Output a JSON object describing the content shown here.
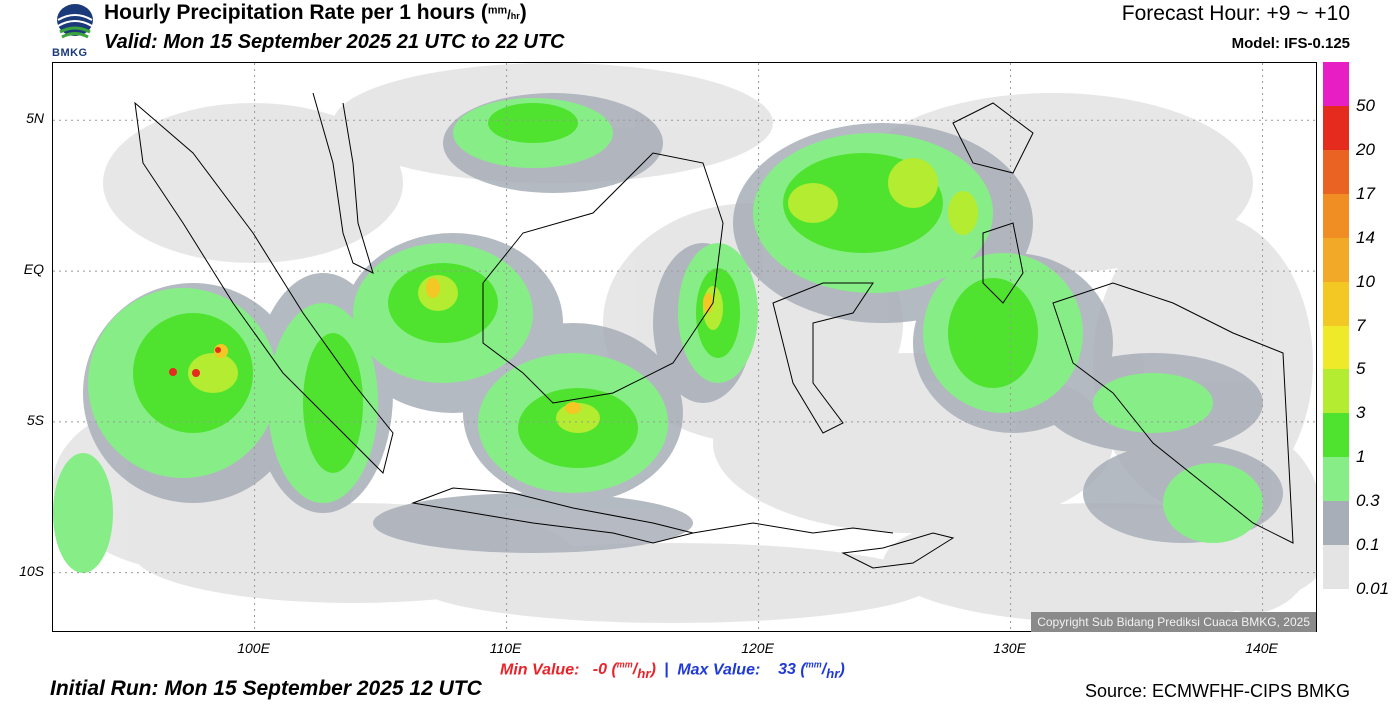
{
  "header": {
    "title": "Hourly Precipitation Rate per 1 hours (",
    "title_unit_num": "mm",
    "title_unit_den": "hr",
    "title_end": ")",
    "valid": "Valid: Mon 15 September 2025 21 UTC to 22 UTC",
    "forecast_hour": "Forecast Hour: +9 ~ +10",
    "model": "Model: IFS-0.125",
    "logo_text": "BMKG"
  },
  "map": {
    "lat_labels": [
      "5N",
      "EQ",
      "5S",
      "10S"
    ],
    "lat_values": [
      5,
      0,
      -5,
      -10
    ],
    "lon_labels": [
      "100E",
      "110E",
      "120E",
      "130E",
      "140E"
    ],
    "lon_values": [
      100,
      110,
      120,
      130,
      140
    ],
    "lon_range": [
      92,
      142.2
    ],
    "lat_range": [
      6.9,
      -12
    ],
    "copyright": "Copyright Sub Bidang Prediksi Cuaca BMKG, 2025"
  },
  "legend": {
    "labels": [
      "50",
      "20",
      "17",
      "14",
      "10",
      "7",
      "5",
      "3",
      "1",
      "0.3",
      "0.1",
      "0.01"
    ],
    "colors": [
      "#e61ec3",
      "#e52a1e",
      "#ea6322",
      "#f08e24",
      "#f2a928",
      "#f3c824",
      "#eeea2a",
      "#b3ec31",
      "#4fe32f",
      "#87ee87",
      "#a8aeb8",
      "#e4e4e4"
    ]
  },
  "stats": {
    "min_label": "Min Value:",
    "min_value": "-0",
    "max_label": "Max Value:",
    "max_value": "33",
    "unit_num": "mm",
    "unit_den": "hr",
    "separator": "|"
  },
  "footer": {
    "initial_run": "Initial Run: Mon 15 September 2025 12 UTC",
    "source": "Source: ECMWFHF-CIPS BMKG"
  }
}
